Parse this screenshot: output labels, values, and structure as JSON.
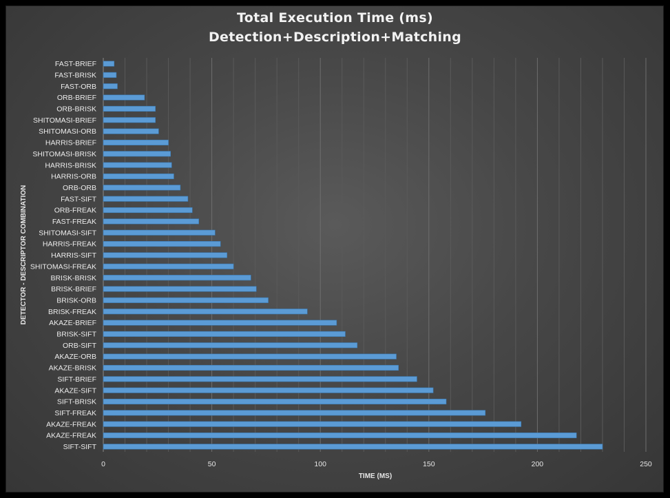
{
  "chart_data": {
    "type": "bar",
    "orientation": "horizontal",
    "title": "Total Execution Time (ms)",
    "subtitle": "Detection+Description+Matching",
    "xlabel": "TIME (MS)",
    "ylabel": "DETECTOR - DESCRIPTOR COMBINATION",
    "xlim": [
      0,
      250
    ],
    "xticks": [
      0,
      50,
      100,
      150,
      200,
      250
    ],
    "grid": true,
    "legend": "none",
    "bar_color": "#5b9bd5",
    "background_color": "#4a4a4a",
    "categories": [
      "FAST-BRIEF",
      "FAST-BRISK",
      "FAST-ORB",
      "ORB-BRIEF",
      "ORB-BRISK",
      "SHITOMASI-BRIEF",
      "SHITOMASI-ORB",
      "HARRIS-BRIEF",
      "SHITOMASI-BRISK",
      "HARRIS-BRISK",
      "HARRIS-ORB",
      "ORB-ORB",
      "FAST-SIFT",
      "ORB-FREAK",
      "FAST-FREAK",
      "SHITOMASI-SIFT",
      "HARRIS-FREAK",
      "HARRIS-SIFT",
      "SHITOMASI-FREAK",
      "BRISK-BRISK",
      "BRISK-BRIEF",
      "BRISK-ORB",
      "BRISK-FREAK",
      "AKAZE-BRIEF",
      "BRISK-SIFT",
      "ORB-SIFT",
      "AKAZE-ORB",
      "AKAZE-BRISK",
      "SIFT-BRIEF",
      "AKAZE-SIFT",
      "SIFT-BRISK",
      "SIFT-FREAK",
      "AKAZE-FREAK",
      "AKAZE-FREAK",
      "SIFT-SIFT"
    ],
    "values": [
      5,
      6,
      6.5,
      19,
      24,
      24,
      25.5,
      30,
      31,
      31.5,
      32.5,
      35.5,
      39,
      41,
      44,
      51.5,
      54,
      57,
      60,
      68,
      70.5,
      76,
      94,
      107.5,
      111.5,
      117,
      135,
      136,
      144.5,
      152,
      158,
      176,
      192.5,
      218,
      230
    ]
  }
}
